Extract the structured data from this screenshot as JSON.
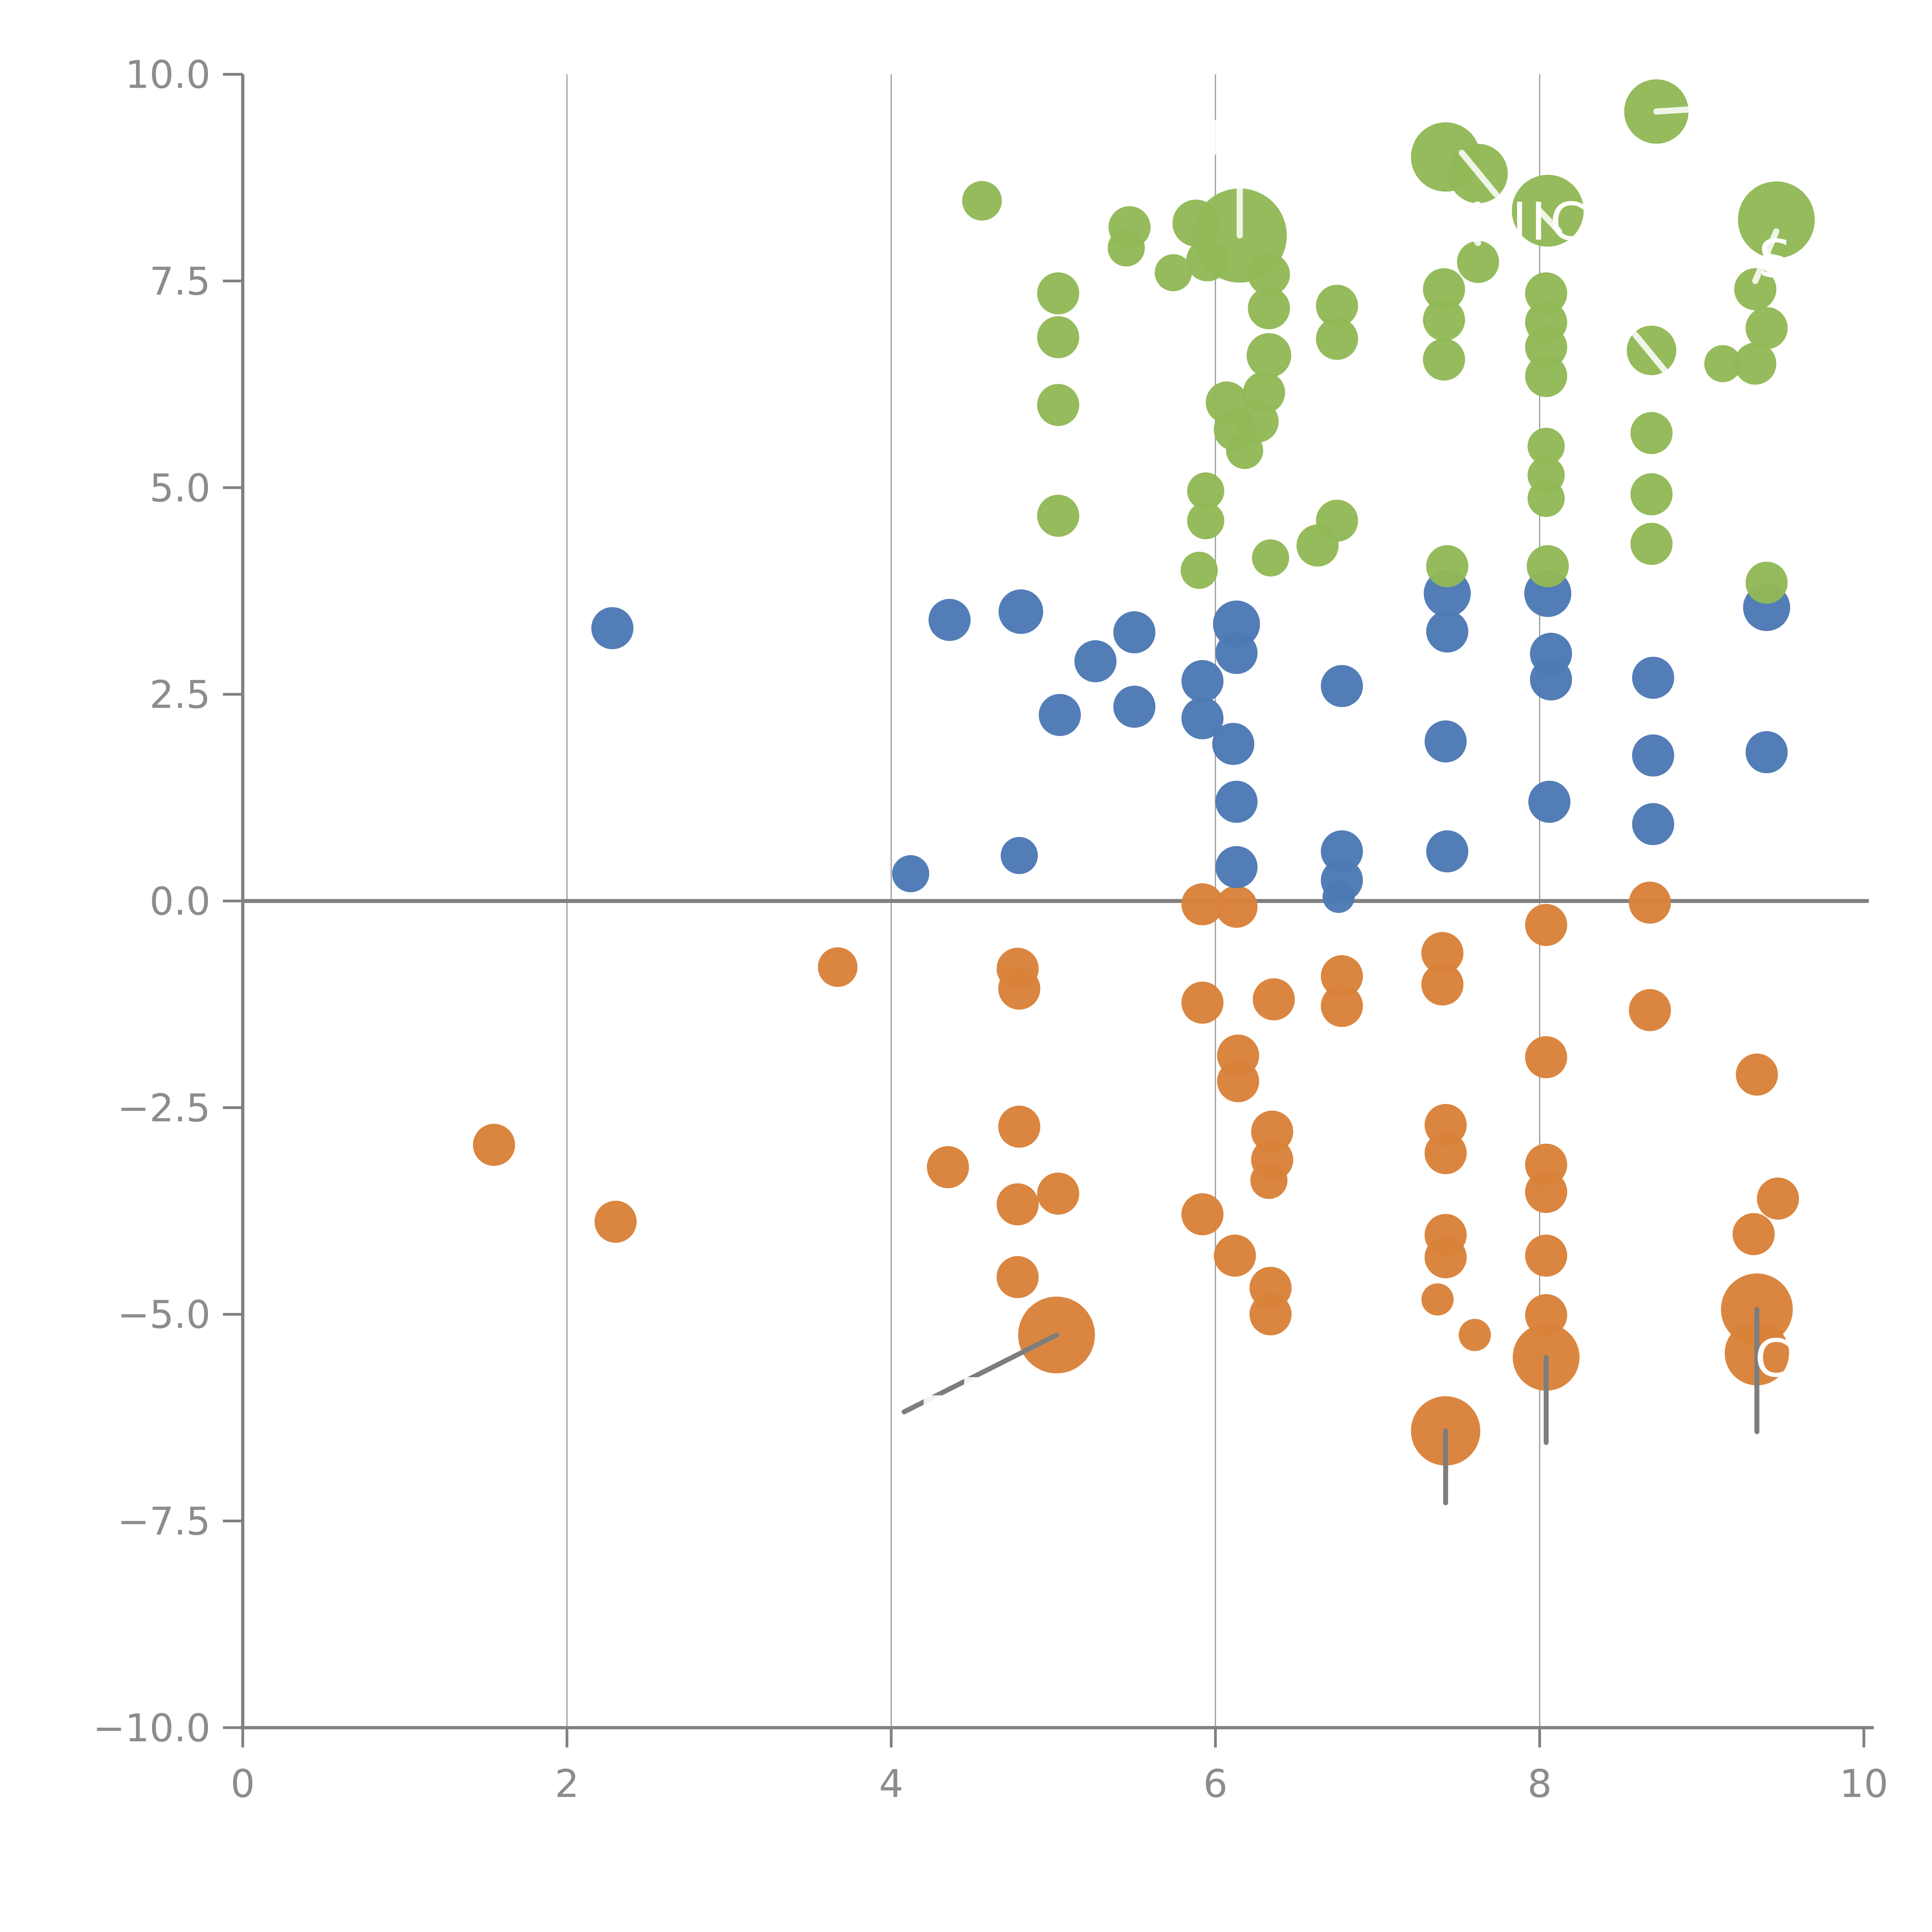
{
  "chart_data": {
    "type": "scatter",
    "subtype": "bubble",
    "title": "",
    "xlabel": "",
    "ylabel": "",
    "xlim": [
      0,
      10
    ],
    "ylim": [
      -10,
      10
    ],
    "x_ticks": [
      "0",
      "2",
      "4",
      "6",
      "8",
      "10"
    ],
    "x_tick_values": [
      0,
      2,
      4,
      6,
      8,
      10
    ],
    "y_ticks": [
      "10.0",
      "7.5",
      "5.0",
      "2.5",
      "0.0",
      "−2.5",
      "−5.0",
      "−7.5",
      "−10.0"
    ],
    "y_tick_values": [
      10,
      7.5,
      5,
      2.5,
      0,
      -2.5,
      -5,
      -7.5,
      -10
    ],
    "grid": "vertical-only",
    "gridline_x_values": [
      2,
      4,
      6,
      8
    ],
    "zero_line_y": 0,
    "legend": "none",
    "colors": {
      "green": "#92b957",
      "blue": "#4d79b4",
      "orange": "#d9823a",
      "axis": "#808080",
      "grid": "#a0a0a0",
      "tick_label": "#8c8c8c",
      "leader_gray": "#7d7d7d",
      "leader_white": "#ffffff"
    },
    "series": [
      {
        "name": "green",
        "color": "#92b957",
        "points": [
          [
            4.56,
            8.47,
            16
          ],
          [
            5.47,
            8.15,
            17
          ],
          [
            5.45,
            7.9,
            15
          ],
          [
            5.88,
            8.2,
            19
          ],
          [
            5.95,
            7.75,
            17
          ],
          [
            5.74,
            7.6,
            15
          ],
          [
            6.15,
            8.05,
            38
          ],
          [
            6.33,
            7.58,
            17
          ],
          [
            6.33,
            7.17,
            17
          ],
          [
            6.33,
            6.6,
            18
          ],
          [
            6.3,
            6.15,
            17
          ],
          [
            6.26,
            5.8,
            17
          ],
          [
            6.07,
            6.03,
            17
          ],
          [
            6.12,
            5.7,
            17
          ],
          [
            6.18,
            5.45,
            15
          ],
          [
            5.03,
            7.35,
            17
          ],
          [
            5.03,
            6.82,
            17
          ],
          [
            5.03,
            6.0,
            17
          ],
          [
            5.03,
            4.66,
            17
          ],
          [
            5.94,
            4.96,
            15
          ],
          [
            5.94,
            4.6,
            15
          ],
          [
            5.9,
            4.0,
            15
          ],
          [
            6.34,
            4.15,
            15
          ],
          [
            6.75,
            4.6,
            17
          ],
          [
            6.63,
            4.3,
            17
          ],
          [
            6.75,
            7.2,
            17
          ],
          [
            6.75,
            6.8,
            17
          ],
          [
            7.42,
            9.0,
            28
          ],
          [
            7.62,
            8.8,
            24
          ],
          [
            7.62,
            7.73,
            17
          ],
          [
            7.41,
            7.4,
            17
          ],
          [
            7.41,
            7.03,
            17
          ],
          [
            7.41,
            6.55,
            17
          ],
          [
            7.43,
            4.05,
            17
          ],
          [
            8.05,
            8.35,
            29
          ],
          [
            8.04,
            7.35,
            17
          ],
          [
            8.04,
            7.0,
            17
          ],
          [
            8.04,
            6.7,
            17
          ],
          [
            8.04,
            6.35,
            17
          ],
          [
            8.04,
            5.5,
            15
          ],
          [
            8.04,
            5.15,
            15
          ],
          [
            8.04,
            4.87,
            15
          ],
          [
            8.05,
            4.05,
            17
          ],
          [
            8.72,
            9.55,
            26
          ],
          [
            8.69,
            6.66,
            20
          ],
          [
            8.69,
            5.66,
            17
          ],
          [
            8.69,
            4.92,
            17
          ],
          [
            8.69,
            4.32,
            17
          ],
          [
            9.46,
            8.24,
            31
          ],
          [
            9.33,
            7.4,
            17
          ],
          [
            9.4,
            6.93,
            17
          ],
          [
            9.33,
            6.5,
            17
          ],
          [
            9.13,
            6.5,
            15
          ],
          [
            9.4,
            3.85,
            17
          ]
        ]
      },
      {
        "name": "blue",
        "color": "#4d79b4",
        "points": [
          [
            2.28,
            3.3,
            17
          ],
          [
            4.36,
            3.4,
            17
          ],
          [
            4.8,
            3.5,
            18
          ],
          [
            5.26,
            2.9,
            17
          ],
          [
            5.5,
            3.25,
            17
          ],
          [
            5.04,
            2.25,
            17
          ],
          [
            5.5,
            2.35,
            17
          ],
          [
            6.13,
            3.35,
            19
          ],
          [
            6.13,
            3.0,
            17
          ],
          [
            5.92,
            2.66,
            17
          ],
          [
            5.92,
            2.21,
            17
          ],
          [
            6.11,
            1.9,
            17
          ],
          [
            6.13,
            1.2,
            17
          ],
          [
            6.13,
            0.41,
            17
          ],
          [
            4.12,
            0.33,
            15
          ],
          [
            4.79,
            0.55,
            15
          ],
          [
            6.78,
            2.6,
            17
          ],
          [
            6.78,
            0.6,
            17
          ],
          [
            6.78,
            0.25,
            17
          ],
          [
            6.76,
            0.05,
            13
          ],
          [
            7.43,
            3.72,
            19
          ],
          [
            7.43,
            3.26,
            17
          ],
          [
            7.42,
            1.93,
            17
          ],
          [
            7.43,
            0.6,
            17
          ],
          [
            8.05,
            3.72,
            19
          ],
          [
            8.07,
            2.99,
            17
          ],
          [
            8.07,
            2.68,
            17
          ],
          [
            8.06,
            1.2,
            17
          ],
          [
            8.7,
            2.7,
            17
          ],
          [
            8.7,
            1.76,
            17
          ],
          [
            8.7,
            0.93,
            17
          ],
          [
            9.4,
            3.55,
            19
          ],
          [
            9.4,
            1.8,
            17
          ]
        ]
      },
      {
        "name": "orange",
        "color": "#d9823a",
        "points": [
          [
            1.55,
            -2.95,
            17
          ],
          [
            2.3,
            -3.88,
            17
          ],
          [
            3.67,
            -0.8,
            16
          ],
          [
            4.78,
            -0.82,
            17
          ],
          [
            4.79,
            -1.06,
            17
          ],
          [
            4.35,
            -3.22,
            17
          ],
          [
            4.79,
            -2.73,
            17
          ],
          [
            4.78,
            -3.67,
            17
          ],
          [
            5.03,
            -3.54,
            17
          ],
          [
            4.78,
            -4.55,
            17
          ],
          [
            5.02,
            -5.25,
            31
          ],
          [
            5.92,
            -0.04,
            17
          ],
          [
            6.13,
            -0.07,
            17
          ],
          [
            5.92,
            -1.23,
            17
          ],
          [
            6.36,
            -1.19,
            17
          ],
          [
            6.14,
            -1.87,
            17
          ],
          [
            6.14,
            -2.18,
            17
          ],
          [
            6.35,
            -2.79,
            17
          ],
          [
            6.35,
            -3.13,
            17
          ],
          [
            6.33,
            -3.38,
            15
          ],
          [
            5.92,
            -3.79,
            17
          ],
          [
            6.12,
            -4.29,
            17
          ],
          [
            6.34,
            -4.68,
            17
          ],
          [
            6.34,
            -5.0,
            17
          ],
          [
            6.78,
            -0.91,
            17
          ],
          [
            6.78,
            -1.27,
            17
          ],
          [
            7.4,
            -0.63,
            17
          ],
          [
            7.4,
            -1.01,
            17
          ],
          [
            7.42,
            -2.71,
            17
          ],
          [
            7.42,
            -3.05,
            17
          ],
          [
            7.42,
            -4.04,
            17
          ],
          [
            7.42,
            -4.31,
            17
          ],
          [
            7.37,
            -4.82,
            13
          ],
          [
            7.6,
            -5.25,
            13
          ],
          [
            7.42,
            -6.41,
            28
          ],
          [
            8.04,
            -0.29,
            17
          ],
          [
            8.04,
            -1.89,
            17
          ],
          [
            8.04,
            -3.19,
            17
          ],
          [
            8.04,
            -3.52,
            17
          ],
          [
            8.04,
            -4.29,
            17
          ],
          [
            8.04,
            -5.01,
            17
          ],
          [
            8.04,
            -5.52,
            27
          ],
          [
            8.68,
            -0.02,
            17
          ],
          [
            8.68,
            -1.32,
            17
          ],
          [
            9.34,
            -2.1,
            17
          ],
          [
            9.47,
            -3.6,
            17
          ],
          [
            9.32,
            -4.03,
            17
          ],
          [
            9.34,
            -4.94,
            29
          ],
          [
            9.34,
            -5.47,
            26
          ]
        ]
      }
    ],
    "annotations": {
      "labels": [
        {
          "text": "MUNICH",
          "x": 7.85,
          "y": 8.0,
          "anchor": "middle",
          "size": 42,
          "color": "#ffffff"
        },
        {
          "text": "SA",
          "x": 9.35,
          "y": 7.55,
          "anchor": "start",
          "size": 42,
          "color": "#ffffff"
        },
        {
          "text": "C",
          "x": 9.45,
          "y": -5.75,
          "anchor": "middle",
          "size": 42,
          "color": "#ffffff"
        }
      ],
      "gray_leader_lines": [
        {
          "x1": 5.02,
          "y1": -5.25,
          "x2": 4.08,
          "y2": -6.18
        },
        {
          "x1": 7.42,
          "y1": -6.41,
          "x2": 7.42,
          "y2": -7.28
        },
        {
          "x1": 8.04,
          "y1": -5.52,
          "x2": 8.04,
          "y2": -6.55
        },
        {
          "x1": 9.34,
          "y1": -4.94,
          "x2": 9.34,
          "y2": -6.42
        }
      ],
      "white_leader_lines": [
        {
          "x1": 6.15,
          "y1": 8.05,
          "x2": 6.15,
          "y2": 9.25
        },
        {
          "x1": 8.72,
          "y1": 9.55,
          "x2": 9.3,
          "y2": 9.62
        },
        {
          "x1": 7.41,
          "y1": 8.5,
          "x2": 7.62,
          "y2": 7.96
        },
        {
          "x1": 7.52,
          "y1": 9.05,
          "x2": 7.73,
          "y2": 8.55
        },
        {
          "x1": 8.59,
          "y1": 6.85,
          "x2": 8.77,
          "y2": 6.42
        },
        {
          "x1": 9.46,
          "y1": 8.1,
          "x2": 9.33,
          "y2": 7.5
        },
        {
          "x1": 8.0,
          "y1": 8.35,
          "x2": 8.12,
          "y2": 8.1
        }
      ],
      "white_label_masks": [
        {
          "x": 5.95,
          "y": 9.45,
          "w": 0.65,
          "h": 0.42
        },
        {
          "x": 4.2,
          "y": -5.98,
          "w": 0.18,
          "h": 0.14
        },
        {
          "x": 4.45,
          "y": -5.76,
          "w": 0.14,
          "h": 0.12
        }
      ]
    }
  }
}
